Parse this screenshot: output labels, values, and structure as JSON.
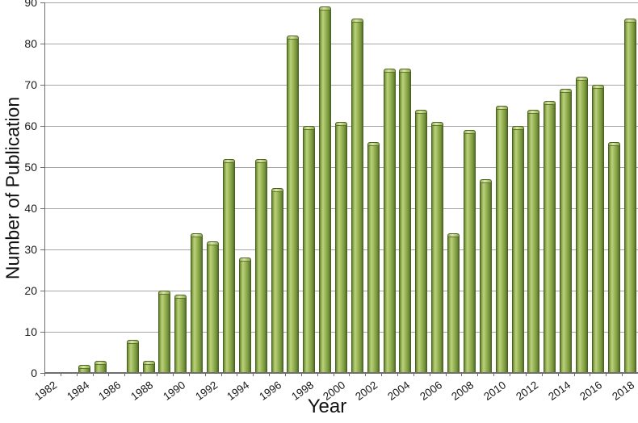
{
  "chart_data": {
    "type": "bar",
    "title": "",
    "xlabel": "Year",
    "ylabel": "Number of Publication",
    "categories": [
      1982,
      1983,
      1984,
      1985,
      1986,
      1987,
      1988,
      1989,
      1990,
      1991,
      1992,
      1993,
      1994,
      1995,
      1996,
      1997,
      1998,
      1999,
      2000,
      2001,
      2002,
      2003,
      2004,
      2005,
      2006,
      2007,
      2008,
      2009,
      2010,
      2011,
      2012,
      2013,
      2014,
      2015,
      2016,
      2017,
      2018
    ],
    "values": [
      0,
      0,
      2,
      3,
      0,
      8,
      3,
      20,
      19,
      34,
      32,
      52,
      28,
      52,
      45,
      82,
      60,
      89,
      61,
      86,
      56,
      74,
      74,
      64,
      61,
      34,
      59,
      47,
      65,
      60,
      64,
      66,
      69,
      72,
      70,
      56,
      86
    ],
    "ylim": [
      0,
      90
    ],
    "ytick_step": 10,
    "xtick_label_every": 2,
    "grid": "horizontal",
    "legend": "none",
    "bar_fill_color": "#9bbb59",
    "bar_edge_color": "#4a6122",
    "gridline_color": "#a6a6a6",
    "axis_color": "#6f6f6f",
    "text_color": "#111111"
  }
}
